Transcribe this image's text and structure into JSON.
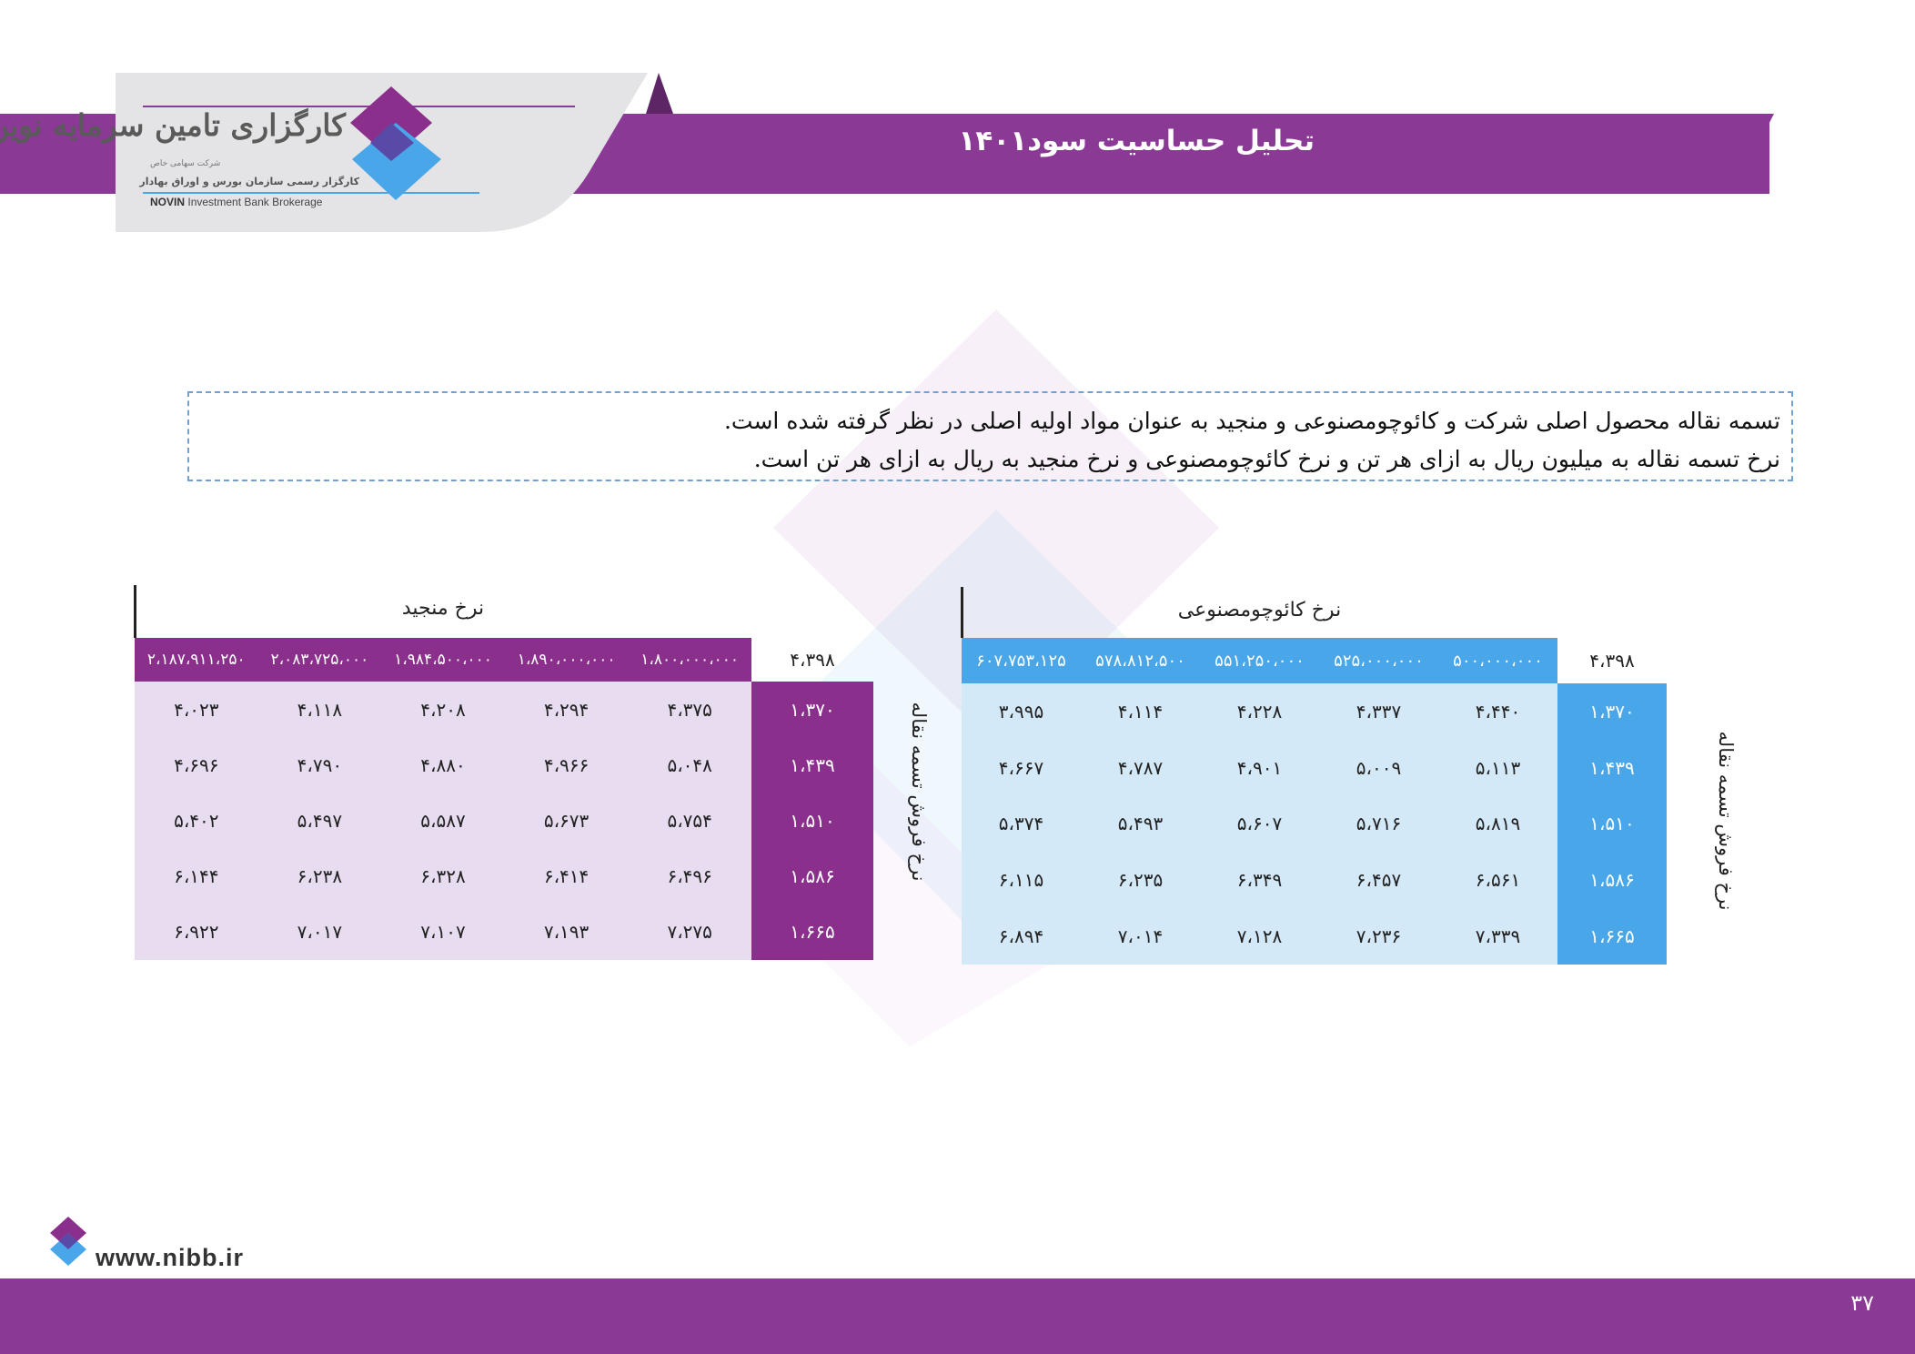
{
  "header": {
    "title": "تحلیل حساسیت سود۱۴۰۱",
    "logo_name": "کارگزاری تامین سرمایه نوین",
    "logo_subtitle": "شرکت سهامی خاص",
    "logo_tagline": "کارگزار رسمی سازمان بورس و اوراق بهادار",
    "logo_english_bold": "NOVIN",
    "logo_english_rest": "Investment Bank Brokerage"
  },
  "info": {
    "line1": "تسمه نقاله محصول اصلی شرکت و کائوچومصنوعی و منجید به عنوان مواد اولیه اصلی در نظر گرفته شده است.",
    "line2": "نرخ تسمه نقاله به میلیون ریال به ازای هر تن و نرخ کائوچومصنوعی و نرخ منجید به ریال به ازای هر تن است."
  },
  "left_table": {
    "title": "نرخ منجید",
    "corner": "۴،۳۹۸",
    "side_label": "نرخ فروش تسمه نقاله",
    "columns": [
      "۲،۱۸۷،۹۱۱،۲۵۰",
      "۲،۰۸۳،۷۲۵،۰۰۰",
      "۱،۹۸۴،۵۰۰،۰۰۰",
      "۱،۸۹۰،۰۰۰،۰۰۰",
      "۱،۸۰۰،۰۰۰،۰۰۰"
    ],
    "row_headers": [
      "۱،۳۷۰",
      "۱،۴۳۹",
      "۱،۵۱۰",
      "۱،۵۸۶",
      "۱،۶۶۵"
    ],
    "rows": [
      [
        "۴،۰۲۳",
        "۴،۱۱۸",
        "۴،۲۰۸",
        "۴،۲۹۴",
        "۴،۳۷۵"
      ],
      [
        "۴،۶۹۶",
        "۴،۷۹۰",
        "۴،۸۸۰",
        "۴،۹۶۶",
        "۵،۰۴۸"
      ],
      [
        "۵،۴۰۲",
        "۵،۴۹۷",
        "۵،۵۸۷",
        "۵،۶۷۳",
        "۵،۷۵۴"
      ],
      [
        "۶،۱۴۴",
        "۶،۲۳۸",
        "۶،۳۲۸",
        "۶،۴۱۴",
        "۶،۴۹۶"
      ],
      [
        "۶،۹۲۲",
        "۷،۰۱۷",
        "۷،۱۰۷",
        "۷،۱۹۳",
        "۷،۲۷۵"
      ]
    ]
  },
  "right_table": {
    "title": "نرخ کائوچومصنوعی",
    "corner": "۴،۳۹۸",
    "side_label": "نرخ فروش تسمه نقاله",
    "columns": [
      "۶۰۷،۷۵۳،۱۲۵",
      "۵۷۸،۸۱۲،۵۰۰",
      "۵۵۱،۲۵۰،۰۰۰",
      "۵۲۵،۰۰۰،۰۰۰",
      "۵۰۰،۰۰۰،۰۰۰"
    ],
    "row_headers": [
      "۱،۳۷۰",
      "۱،۴۳۹",
      "۱،۵۱۰",
      "۱،۵۸۶",
      "۱،۶۶۵"
    ],
    "rows": [
      [
        "۳،۹۹۵",
        "۴،۱۱۴",
        "۴،۲۲۸",
        "۴،۳۳۷",
        "۴،۴۴۰"
      ],
      [
        "۴،۶۶۷",
        "۴،۷۸۷",
        "۴،۹۰۱",
        "۵،۰۰۹",
        "۵،۱۱۳"
      ],
      [
        "۵،۳۷۴",
        "۵،۴۹۳",
        "۵،۶۰۷",
        "۵،۷۱۶",
        "۵،۸۱۹"
      ],
      [
        "۶،۱۱۵",
        "۶،۲۳۵",
        "۶،۳۴۹",
        "۶،۴۵۷",
        "۶،۵۶۱"
      ],
      [
        "۶،۸۹۴",
        "۷،۰۱۴",
        "۷،۱۲۸",
        "۷،۲۳۶",
        "۷،۳۳۹"
      ]
    ]
  },
  "footer": {
    "url": "www.nibb.ir",
    "page_number": "۳۷"
  },
  "colors": {
    "brand_purple": "#8a3a95",
    "table_purple": "#8b2f8c",
    "table_blue": "#49a6e8"
  }
}
